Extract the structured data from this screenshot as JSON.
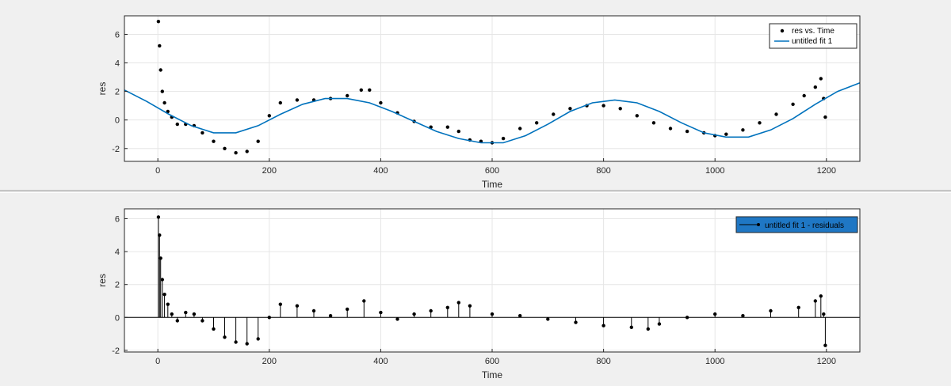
{
  "chart_data": [
    {
      "type": "scatter",
      "xlabel": "Time",
      "ylabel": "res",
      "xlim": [
        -60,
        1260
      ],
      "ylim": [
        -2.9,
        7.3
      ],
      "xticks": [
        0,
        200,
        400,
        600,
        800,
        1000,
        1200
      ],
      "yticks": [
        -2,
        0,
        2,
        4,
        6
      ],
      "grid": true,
      "legend_position": "top-right",
      "series": [
        {
          "name": "res vs. Time",
          "kind": "scatter",
          "color": "#000000",
          "x": [
            1,
            3,
            5,
            8,
            12,
            18,
            25,
            35,
            50,
            65,
            80,
            100,
            120,
            140,
            160,
            180,
            200,
            220,
            250,
            280,
            310,
            340,
            365,
            380,
            400,
            430,
            460,
            490,
            520,
            540,
            560,
            580,
            600,
            620,
            650,
            680,
            710,
            740,
            770,
            800,
            830,
            860,
            890,
            920,
            950,
            980,
            1000,
            1020,
            1050,
            1080,
            1110,
            1140,
            1160,
            1180,
            1190,
            1195,
            1198
          ],
          "y": [
            6.9,
            5.2,
            3.5,
            2.0,
            1.2,
            0.6,
            0.2,
            -0.3,
            -0.3,
            -0.4,
            -0.9,
            -1.5,
            -2.0,
            -2.3,
            -2.2,
            -1.5,
            0.3,
            1.2,
            1.4,
            1.4,
            1.5,
            1.7,
            2.1,
            2.1,
            1.2,
            0.5,
            -0.1,
            -0.5,
            -0.5,
            -0.8,
            -1.4,
            -1.5,
            -1.6,
            -1.3,
            -0.6,
            -0.2,
            0.4,
            0.8,
            1.0,
            1.0,
            0.8,
            0.3,
            -0.2,
            -0.6,
            -0.8,
            -0.9,
            -1.1,
            -1.0,
            -0.7,
            -0.2,
            0.4,
            1.1,
            1.7,
            2.3,
            2.9,
            1.5,
            0.2
          ]
        },
        {
          "name": "untitled fit 1",
          "kind": "line",
          "color": "#0072bd",
          "x": [
            -60,
            -20,
            20,
            60,
            100,
            140,
            180,
            220,
            260,
            300,
            340,
            380,
            420,
            460,
            500,
            540,
            580,
            620,
            660,
            700,
            740,
            780,
            820,
            860,
            900,
            940,
            980,
            1020,
            1060,
            1100,
            1140,
            1180,
            1220,
            1260
          ],
          "y": [
            2.1,
            1.3,
            0.4,
            -0.4,
            -0.9,
            -0.9,
            -0.4,
            0.4,
            1.1,
            1.5,
            1.5,
            1.2,
            0.6,
            -0.1,
            -0.8,
            -1.3,
            -1.6,
            -1.6,
            -1.1,
            -0.3,
            0.6,
            1.2,
            1.4,
            1.2,
            0.6,
            -0.2,
            -0.9,
            -1.2,
            -1.2,
            -0.7,
            0.1,
            1.1,
            2.0,
            2.6
          ]
        }
      ]
    },
    {
      "type": "bar",
      "xlabel": "Time",
      "ylabel": "res",
      "xlim": [
        -60,
        1260
      ],
      "ylim": [
        -2.1,
        6.6
      ],
      "xticks": [
        0,
        200,
        400,
        600,
        800,
        1000,
        1200
      ],
      "yticks": [
        -2,
        0,
        2,
        4,
        6
      ],
      "grid": true,
      "legend_position": "top-right",
      "zero_line": true,
      "series": [
        {
          "name": "untitled fit 1 - residuals",
          "kind": "stem",
          "color": "#000000",
          "x": [
            1,
            3,
            5,
            8,
            12,
            18,
            25,
            35,
            50,
            65,
            80,
            100,
            120,
            140,
            160,
            180,
            200,
            220,
            250,
            280,
            310,
            340,
            370,
            400,
            430,
            460,
            490,
            520,
            540,
            560,
            600,
            650,
            700,
            750,
            800,
            850,
            880,
            900,
            950,
            1000,
            1050,
            1100,
            1150,
            1180,
            1190,
            1195,
            1198
          ],
          "y": [
            6.1,
            5.0,
            3.6,
            2.3,
            1.4,
            0.8,
            0.2,
            -0.2,
            0.3,
            0.2,
            -0.2,
            -0.7,
            -1.2,
            -1.5,
            -1.6,
            -1.3,
            0.0,
            0.8,
            0.7,
            0.4,
            0.1,
            0.5,
            1.0,
            0.3,
            -0.1,
            0.2,
            0.4,
            0.6,
            0.9,
            0.7,
            0.2,
            0.1,
            -0.1,
            -0.3,
            -0.5,
            -0.6,
            -0.7,
            -0.4,
            0.0,
            0.2,
            0.1,
            0.4,
            0.6,
            1.0,
            1.3,
            0.2,
            -1.7
          ]
        }
      ]
    }
  ]
}
